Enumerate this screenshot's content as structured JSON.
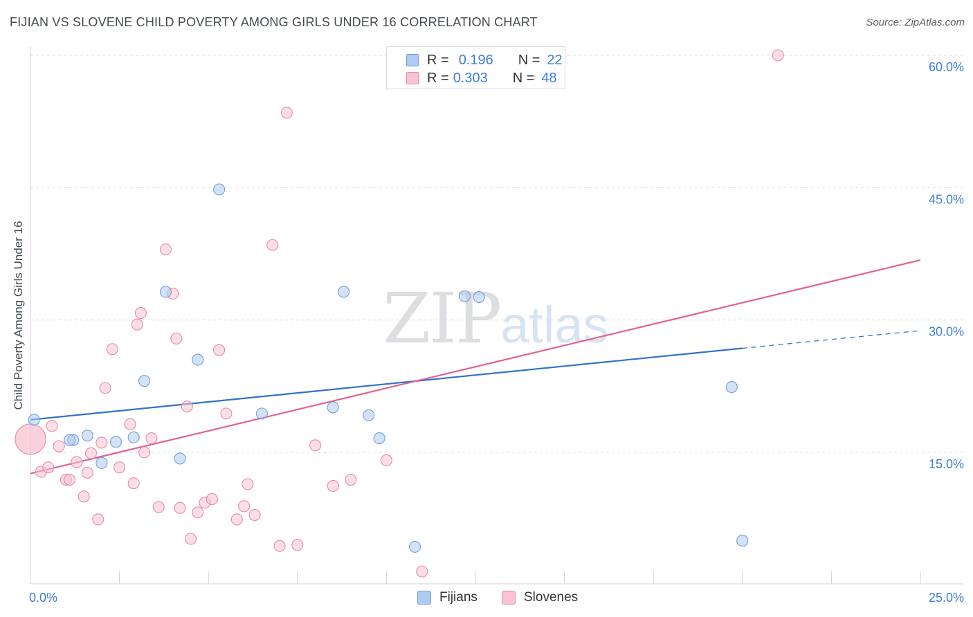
{
  "header": {
    "title": "FIJIAN VS SLOVENE CHILD POVERTY AMONG GIRLS UNDER 16 CORRELATION CHART",
    "source": "Source: ZipAtlas.com"
  },
  "watermark": {
    "zip": "ZIP",
    "atlas": "atlas"
  },
  "legend": {
    "rows": [
      {
        "r_label": "R =",
        "r_value": "0.196",
        "n_label": "N =",
        "n_value": "22",
        "color": "#aecbf0",
        "border": "#6f9fdc"
      },
      {
        "r_label": "R =",
        "r_value": "0.303",
        "n_label": "N =",
        "n_value": "48",
        "color": "#f8c3d2",
        "border": "#e78aa7"
      }
    ],
    "bottom": [
      {
        "label": "Fijians",
        "color": "#aecbf0",
        "border": "#6f9fdc"
      },
      {
        "label": "Slovenes",
        "color": "#f8c3d2",
        "border": "#e78aa7"
      }
    ]
  },
  "chart_data": {
    "type": "scatter",
    "title": "FIJIAN VS SLOVENE CHILD POVERTY AMONG GIRLS UNDER 16 CORRELATION CHART",
    "xlabel": "",
    "ylabel": "Child Poverty Among Girls Under 16",
    "xlim": [
      0,
      25
    ],
    "ylim": [
      0,
      60
    ],
    "x_tick_labels": [
      {
        "value": 0,
        "label": "0.0%"
      },
      {
        "value": 25,
        "label": "25.0%"
      }
    ],
    "y_tick_labels": [
      {
        "value": 15,
        "label": "15.0%"
      },
      {
        "value": 30,
        "label": "30.0%"
      },
      {
        "value": 45,
        "label": "45.0%"
      },
      {
        "value": 60,
        "label": "60.0%"
      }
    ],
    "x_minor_ticks": [
      0,
      2.5,
      5,
      7.5,
      10,
      12.5,
      15,
      17.5,
      20,
      22.5,
      25
    ],
    "y_gridlines": [
      15,
      30,
      45,
      60
    ],
    "series": [
      {
        "name": "Fijians",
        "color": "#aecbf0",
        "edge": "#6f9fdc",
        "line_color": "#2f72cc",
        "trend": {
          "x0": 0,
          "y0": 18.7,
          "x1": 20,
          "y1": 26.8,
          "dash_to_x": 25,
          "dash_to_y": 28.8
        },
        "x": [
          0.1,
          1.2,
          1.1,
          1.6,
          2.0,
          2.4,
          2.9,
          3.2,
          3.8,
          4.2,
          4.7,
          5.3,
          6.5,
          8.5,
          8.8,
          9.5,
          9.8,
          10.8,
          12.2,
          12.6,
          19.7,
          20.0
        ],
        "y": [
          18.7,
          16.4,
          16.4,
          16.9,
          13.8,
          16.2,
          16.7,
          23.1,
          33.2,
          14.3,
          25.5,
          44.8,
          19.4,
          20.1,
          33.2,
          19.2,
          16.6,
          4.3,
          32.7,
          32.6,
          22.4,
          5.0
        ]
      },
      {
        "name": "Slovenes",
        "color": "#f8c3d2",
        "edge": "#e78aa7",
        "line_color": "#e0638f",
        "trend": {
          "x0": 0,
          "y0": 12.6,
          "x1": 25,
          "y1": 36.8
        },
        "x": [
          0.0,
          0.3,
          0.5,
          0.6,
          0.8,
          1.0,
          1.1,
          1.3,
          1.5,
          1.6,
          1.7,
          1.9,
          2.0,
          2.1,
          2.3,
          2.5,
          2.8,
          2.9,
          3.0,
          3.1,
          3.2,
          3.4,
          3.6,
          3.8,
          4.0,
          4.1,
          4.2,
          4.4,
          4.5,
          4.7,
          4.9,
          5.1,
          5.3,
          5.5,
          5.8,
          6.0,
          6.1,
          6.3,
          6.8,
          7.0,
          7.2,
          7.5,
          8.0,
          8.5,
          9.0,
          10.0,
          11.0,
          21.0
        ],
        "y": [
          16.5,
          12.8,
          13.3,
          18.0,
          15.7,
          11.9,
          11.9,
          13.9,
          10.0,
          12.7,
          14.9,
          7.4,
          16.1,
          22.3,
          26.7,
          13.3,
          18.2,
          11.5,
          29.5,
          30.8,
          15.0,
          16.6,
          8.8,
          38.0,
          33.0,
          27.9,
          8.7,
          20.2,
          5.2,
          8.2,
          9.3,
          9.7,
          26.6,
          19.4,
          7.4,
          8.9,
          11.4,
          7.9,
          38.5,
          4.4,
          53.5,
          4.5,
          15.8,
          11.2,
          11.9,
          14.1,
          1.5,
          60.0
        ]
      }
    ]
  }
}
